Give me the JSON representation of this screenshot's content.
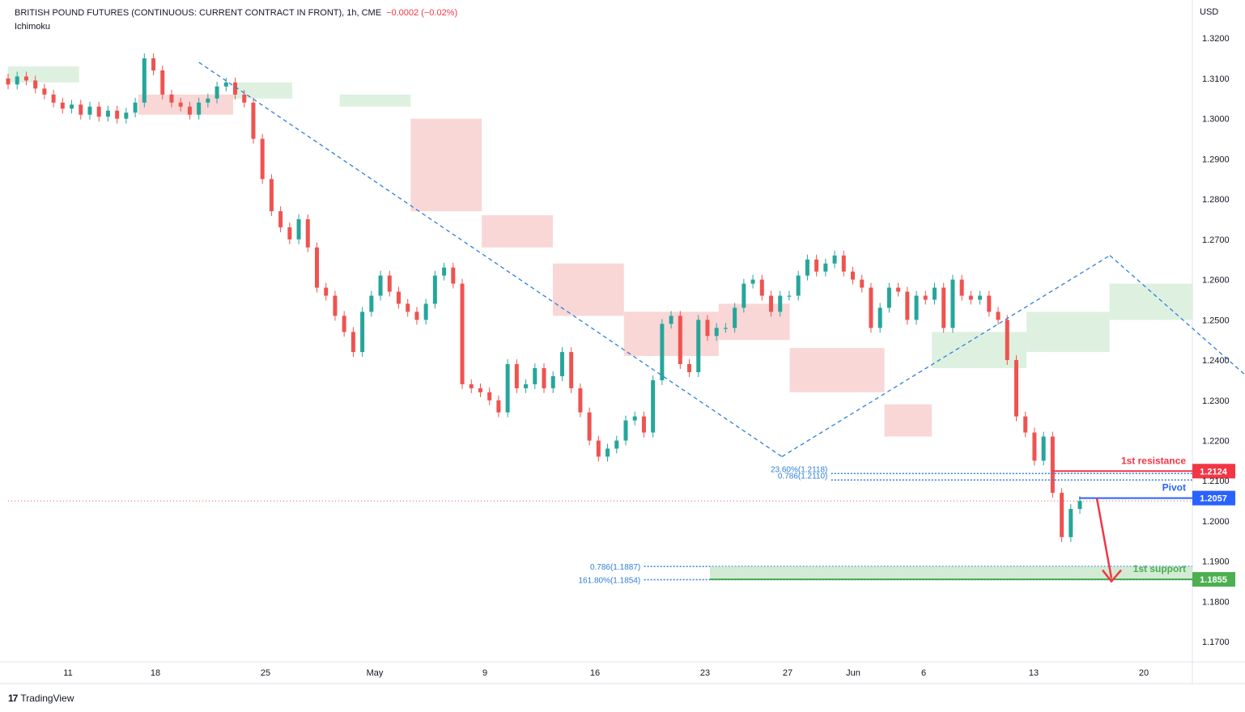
{
  "header": {
    "symbol": "BRITISH POUND FUTURES (CONTINUOUS: CURRENT CONTRACT IN FRONT), 1h, CME",
    "change": "−0.0002 (−0.02%)",
    "indicator": "Ichimoku",
    "currency": "USD"
  },
  "branding": {
    "logo_mark": "17",
    "name": "TradingView"
  },
  "colors": {
    "up": "#26a69a",
    "down": "#ef5350",
    "trend": "#2f7fd9",
    "resistance": "#f23645",
    "pivot": "#2962ff",
    "support": "#4caf50",
    "cloud_red": "#f7c9c9",
    "cloud_green": "#d3ecd6"
  },
  "chart_data": {
    "type": "line",
    "title": "BRITISH POUND FUTURES (CONTINUOUS: CURRENT CONTRACT IN FRONT), 1h, CME",
    "ylim": [
      1.165,
      1.3295
    ],
    "y_ticks": [
      "1.3200",
      "1.3100",
      "1.3000",
      "1.2900",
      "1.2800",
      "1.2700",
      "1.2600",
      "1.2500",
      "1.2400",
      "1.2300",
      "1.2200",
      "1.2100",
      "1.2000",
      "1.1900",
      "1.1800",
      "1.1700"
    ],
    "x_ticks": [
      "11",
      "18",
      "25",
      "May",
      "9",
      "16",
      "23",
      "27",
      "Jun",
      "6",
      "13",
      "20"
    ],
    "series": [
      {
        "values": [
          1.3085,
          1.3105,
          1.3095,
          1.3075,
          1.306,
          1.304,
          1.3025,
          1.3035,
          1.301,
          1.303,
          1.3005,
          1.302,
          1.3,
          1.3015,
          1.304,
          1.315,
          1.312,
          1.306,
          1.304,
          1.303,
          1.301,
          1.304,
          1.305,
          1.308,
          1.309,
          1.306,
          1.304,
          1.295,
          1.285,
          1.277,
          1.273,
          1.27,
          1.275,
          1.268,
          1.258,
          1.256,
          1.251,
          1.247,
          1.242,
          1.252,
          1.256,
          1.261,
          1.257,
          1.254,
          1.252,
          1.25,
          1.254,
          1.261,
          1.263,
          1.259,
          1.234,
          1.233,
          1.232,
          1.23,
          1.227,
          1.239,
          1.233,
          1.234,
          1.238,
          1.233,
          1.236,
          1.242,
          1.233,
          1.227,
          1.22,
          1.216,
          1.218,
          1.22,
          1.225,
          1.226,
          1.222,
          1.235,
          1.249,
          1.251,
          1.239,
          1.237,
          1.25,
          1.246,
          1.248,
          1.248,
          1.253,
          1.259,
          1.26,
          1.256,
          1.252,
          1.256,
          1.256,
          1.261,
          1.265,
          1.262,
          1.264,
          1.266,
          1.262,
          1.26,
          1.258,
          1.248,
          1.253,
          1.258,
          1.257,
          1.25,
          1.256,
          1.255,
          1.258,
          1.248,
          1.26,
          1.256,
          1.255,
          1.256,
          1.252,
          1.25,
          1.24,
          1.226,
          1.222,
          1.215,
          1.221,
          1.207,
          1.196,
          1.203,
          1.205
        ]
      }
    ],
    "ichimoku_cloud": [
      {
        "x0": 0,
        "x1": 0.06,
        "bottom": 1.309,
        "top": 1.313,
        "color": "green"
      },
      {
        "x0": 0.11,
        "x1": 0.19,
        "bottom": 1.301,
        "top": 1.306,
        "color": "red"
      },
      {
        "x0": 0.19,
        "x1": 0.24,
        "bottom": 1.305,
        "top": 1.309,
        "color": "green"
      },
      {
        "x0": 0.28,
        "x1": 0.34,
        "bottom": 1.303,
        "top": 1.306,
        "color": "green"
      },
      {
        "x0": 0.34,
        "x1": 0.4,
        "bottom": 1.277,
        "top": 1.3,
        "color": "red"
      },
      {
        "x0": 0.4,
        "x1": 0.46,
        "bottom": 1.268,
        "top": 1.276,
        "color": "red"
      },
      {
        "x0": 0.46,
        "x1": 0.52,
        "bottom": 1.251,
        "top": 1.264,
        "color": "red"
      },
      {
        "x0": 0.52,
        "x1": 0.6,
        "bottom": 1.241,
        "top": 1.252,
        "color": "red"
      },
      {
        "x0": 0.6,
        "x1": 0.66,
        "bottom": 1.245,
        "top": 1.254,
        "color": "red"
      },
      {
        "x0": 0.66,
        "x1": 0.74,
        "bottom": 1.232,
        "top": 1.243,
        "color": "red"
      },
      {
        "x0": 0.74,
        "x1": 0.78,
        "bottom": 1.221,
        "top": 1.229,
        "color": "red"
      },
      {
        "x0": 0.78,
        "x1": 0.86,
        "bottom": 1.238,
        "top": 1.247,
        "color": "green"
      },
      {
        "x0": 0.86,
        "x1": 0.93,
        "bottom": 1.242,
        "top": 1.252,
        "color": "green"
      },
      {
        "x0": 0.93,
        "x1": 1.0,
        "bottom": 1.25,
        "top": 1.259,
        "color": "green"
      }
    ],
    "trendlines": [
      {
        "from": [
          0.178,
          1.314
        ],
        "to": [
          0.722,
          1.216
        ]
      },
      {
        "from": [
          0.722,
          1.216
        ],
        "to": [
          1.028,
          1.266
        ]
      },
      {
        "from": [
          1.028,
          1.266
        ],
        "to": [
          1.33,
          1.195
        ]
      }
    ],
    "levels": [
      {
        "name": "1st resistance",
        "value": 1.2124,
        "tag": "1.2124"
      },
      {
        "name": "Pivot",
        "value": 1.2057,
        "tag": "1.2057"
      },
      {
        "name": "1st support",
        "value": 1.1855,
        "tag": "1.1855"
      }
    ],
    "fib_labels": [
      {
        "text": "23.60%(1.2118)",
        "value": 1.2118
      },
      {
        "text": "0.786(1.2110)",
        "value": 1.211
      },
      {
        "text": "0.786(1.1887)",
        "value": 1.1887
      },
      {
        "text": "161.80%(1.1854)",
        "value": 1.1854
      }
    ],
    "current_price_line": 1.205,
    "arrow": {
      "from": 1.2057,
      "to": 1.185
    }
  }
}
